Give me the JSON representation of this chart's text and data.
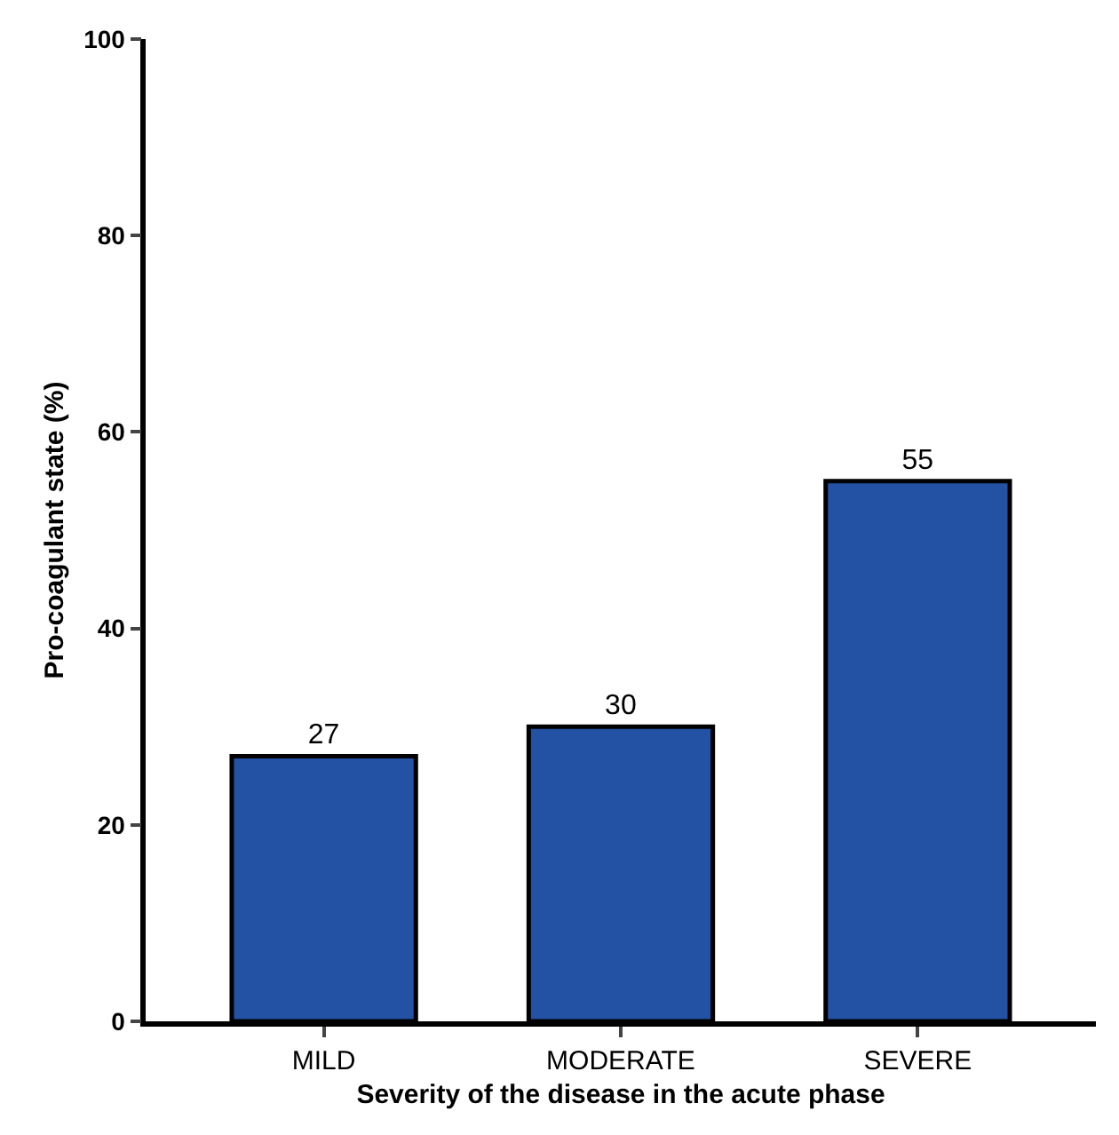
{
  "chart_data": {
    "type": "bar",
    "categories": [
      "MILD",
      "MODERATE",
      "SEVERE"
    ],
    "values": [
      27,
      30,
      55
    ],
    "color": "#2352a5",
    "data_labels": true,
    "xlabel": "Severity of the disease in the acute phase",
    "ylabel": "Pro-coagulant state (%)",
    "ylim": [
      0,
      100
    ],
    "yticks": [
      0,
      20,
      40,
      60,
      80,
      100
    ]
  }
}
